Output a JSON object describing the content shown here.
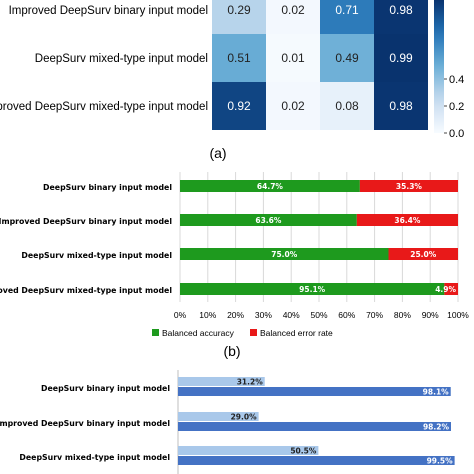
{
  "colors": {
    "accuracy": "#1e9a1e",
    "error": "#e81919",
    "light_blue": "#a9c8ea",
    "dark_blue": "#4472c4",
    "grid": "#d9d9d9",
    "text_light": "#ffffff"
  },
  "chart_data": [
    {
      "type": "heatmap",
      "rows": [
        "Improved DeepSurv binary input  model",
        "DeepSurv mixed-type input  model",
        "Improved DeepSurv mixed-type input model"
      ],
      "values": [
        [
          0.29,
          0.02,
          0.71,
          0.98
        ],
        [
          0.51,
          0.01,
          0.49,
          0.99
        ],
        [
          0.92,
          0.02,
          0.08,
          0.98
        ]
      ],
      "colorbar_ticks": [
        "0.0",
        "0.2",
        "0.4"
      ],
      "colorbar_range": [
        0,
        1
      ],
      "caption": "(a)"
    },
    {
      "type": "bar",
      "orientation": "horizontal",
      "stacked": true,
      "categories": [
        "DeepSurv binary input model",
        "Improved DeepSurv binary input model",
        "DeepSurv mixed-type input model",
        "Improved DeepSurv mixed-type input model"
      ],
      "series": [
        {
          "name": "Balanced accuracy",
          "values": [
            64.7,
            63.6,
            75.0,
            95.1
          ],
          "labels": [
            "64.7%",
            "63.6%",
            "75.0%",
            "95.1%"
          ]
        },
        {
          "name": "Balanced error rate",
          "values": [
            35.3,
            36.4,
            25.0,
            4.9
          ],
          "labels": [
            "35.3%",
            "36.4%",
            "25.0%",
            "4.9%"
          ]
        }
      ],
      "xticks": [
        "0%",
        "10%",
        "20%",
        "30%",
        "40%",
        "50%",
        "60%",
        "70%",
        "80%",
        "90%",
        "100%"
      ],
      "xlim": [
        0,
        100
      ],
      "legend_position": "bottom-left",
      "caption": "(b)"
    },
    {
      "type": "bar",
      "orientation": "horizontal",
      "stacked": false,
      "categories": [
        "DeepSurv binary input model",
        "Improved DeepSurv binary input model",
        "DeepSurv mixed-type input model"
      ],
      "series": [
        {
          "values": [
            31.2,
            29.0,
            50.5
          ],
          "labels": [
            "31.2%",
            "29.0%",
            "50.5%"
          ]
        },
        {
          "values": [
            98.1,
            98.2,
            99.5
          ],
          "labels": [
            "98.1%",
            "98.2%",
            "99.5%"
          ]
        }
      ],
      "xlim": [
        0,
        100
      ]
    }
  ]
}
